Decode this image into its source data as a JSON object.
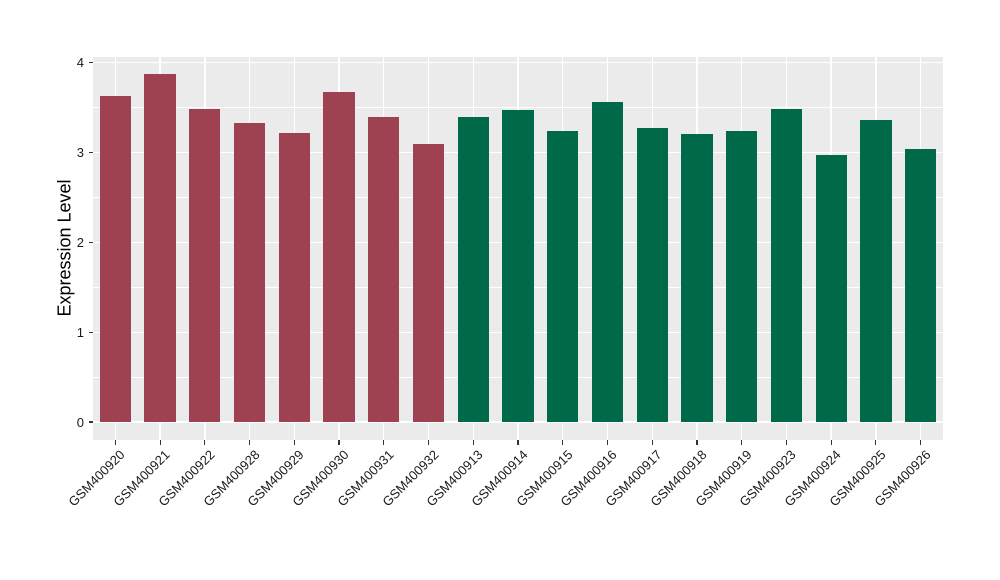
{
  "chart_data": {
    "type": "bar",
    "title": "",
    "xlabel": "",
    "ylabel": "Expression Level",
    "ylim": [
      0,
      4
    ],
    "yticks": [
      0,
      1,
      2,
      3,
      4
    ],
    "minor_yticks": [
      0.5,
      1.5,
      2.5,
      3.5
    ],
    "grid": true,
    "legend": "none",
    "categories": [
      "GSM400920",
      "GSM400921",
      "GSM400922",
      "GSM400928",
      "GSM400929",
      "GSM400930",
      "GSM400931",
      "GSM400932",
      "GSM400913",
      "GSM400914",
      "GSM400915",
      "GSM400916",
      "GSM400917",
      "GSM400918",
      "GSM400919",
      "GSM400923",
      "GSM400924",
      "GSM400925",
      "GSM400926"
    ],
    "values": [
      3.63,
      3.88,
      3.48,
      3.33,
      3.22,
      3.67,
      3.4,
      3.1,
      3.4,
      3.47,
      3.24,
      3.56,
      3.27,
      3.21,
      3.24,
      3.48,
      2.97,
      3.36,
      3.04
    ],
    "bar_colors": [
      "#9E4252",
      "#9E4252",
      "#9E4252",
      "#9E4252",
      "#9E4252",
      "#9E4252",
      "#9E4252",
      "#9E4252",
      "#006949",
      "#006949",
      "#006949",
      "#006949",
      "#006949",
      "#006949",
      "#006949",
      "#006949",
      "#006949",
      "#006949",
      "#006949"
    ],
    "colors": {
      "group_left": "#9E4252",
      "group_right": "#006949",
      "panel_background": "#EBEBEB",
      "gridline": "#FFFFFF",
      "tick": "#333333",
      "text": "#1A1A1A"
    }
  }
}
